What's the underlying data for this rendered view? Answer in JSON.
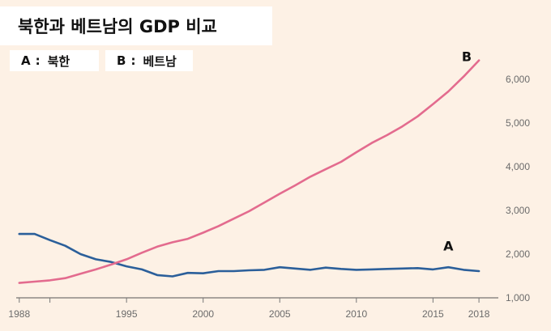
{
  "chart_data": {
    "type": "line",
    "title": "북한과 베트남의 GDP 비교",
    "legend": [
      {
        "key": "A",
        "sep": ":",
        "label": "북한"
      },
      {
        "key": "B",
        "sep": ":",
        "label": "베트남"
      }
    ],
    "xlim": [
      1987.8,
      2019.0
    ],
    "ylim": [
      1000,
      6700
    ],
    "xticks": [
      1988,
      1990,
      1995,
      2000,
      2005,
      2010,
      2015,
      2018
    ],
    "xtick_labels": [
      "1988",
      "",
      "1995",
      "2000",
      "2005",
      "2010",
      "2015",
      "2018"
    ],
    "yticks": [
      1000,
      2000,
      3000,
      4000,
      5000,
      6000
    ],
    "ytick_labels": [
      "1,000",
      "2,000",
      "3,000",
      "4,000",
      "5,000",
      "6,000"
    ],
    "grid": false,
    "series": [
      {
        "name": "A",
        "color": "#2b5f9a",
        "x": [
          1988,
          1989,
          1990,
          1991,
          1992,
          1993,
          1994,
          1995,
          1996,
          1997,
          1998,
          1999,
          2000,
          2001,
          2002,
          2003,
          2004,
          2005,
          2006,
          2007,
          2008,
          2009,
          2010,
          2011,
          2012,
          2013,
          2014,
          2015,
          2016,
          2017,
          2018
        ],
        "y": [
          2460,
          2460,
          2320,
          2190,
          2000,
          1880,
          1820,
          1720,
          1650,
          1520,
          1490,
          1570,
          1560,
          1610,
          1610,
          1630,
          1640,
          1700,
          1670,
          1640,
          1690,
          1660,
          1640,
          1650,
          1660,
          1670,
          1680,
          1650,
          1700,
          1640,
          1610
        ]
      },
      {
        "name": "B",
        "color": "#e36b8e",
        "x": [
          1988,
          1989,
          1990,
          1991,
          1992,
          1993,
          1994,
          1995,
          1996,
          1997,
          1998,
          1999,
          2000,
          2001,
          2002,
          2003,
          2004,
          2005,
          2006,
          2007,
          2008,
          2009,
          2010,
          2011,
          2012,
          2013,
          2014,
          2015,
          2016,
          2017,
          2018
        ],
        "y": [
          1340,
          1370,
          1400,
          1450,
          1550,
          1650,
          1760,
          1880,
          2030,
          2170,
          2270,
          2350,
          2490,
          2640,
          2810,
          2980,
          3180,
          3380,
          3570,
          3770,
          3940,
          4110,
          4330,
          4540,
          4720,
          4920,
          5150,
          5430,
          5720,
          6060,
          6430
        ]
      }
    ],
    "annotations": [
      {
        "text": "A",
        "x": 2016.0,
        "y": 2080
      },
      {
        "text": "B",
        "x": 2017.2,
        "y": 6410
      }
    ]
  }
}
